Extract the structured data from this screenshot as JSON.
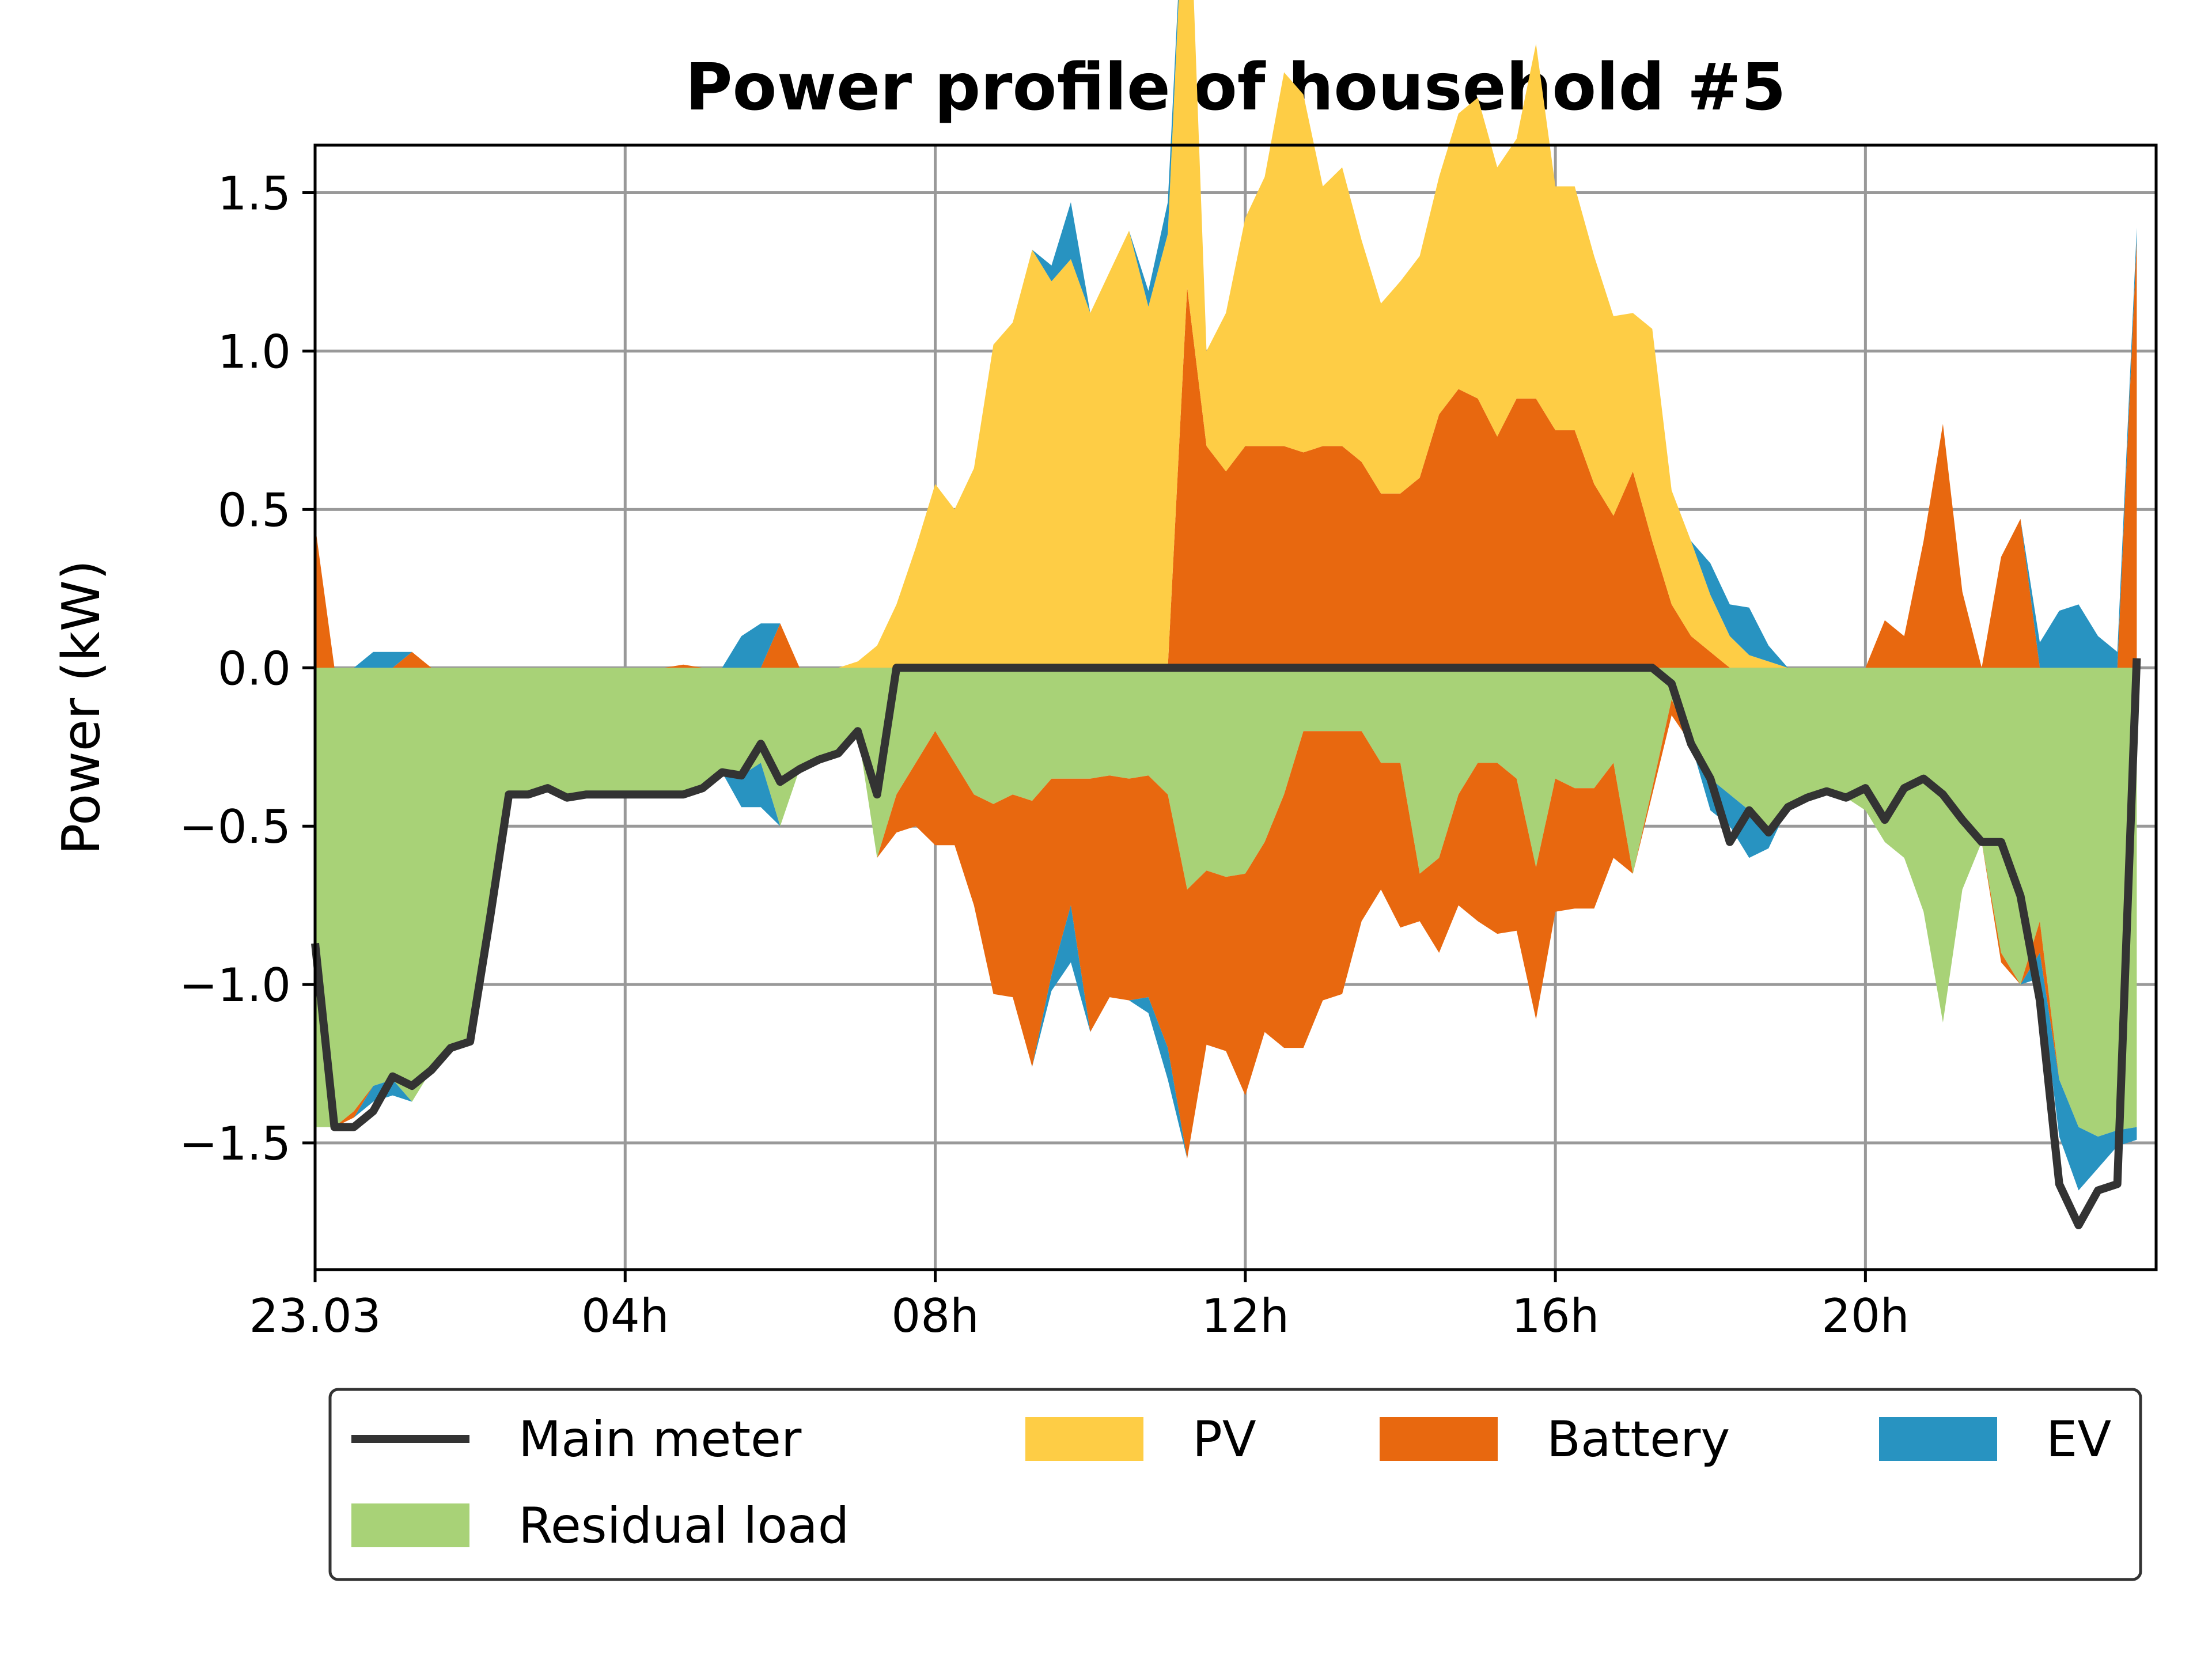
{
  "chart_data": {
    "type": "area",
    "title": "Power profile of household #5",
    "xlabel": "",
    "ylabel": "Power (kW)",
    "xlim": [
      0,
      23.75
    ],
    "ylim": [
      -1.9,
      1.65
    ],
    "x_ticks": [
      {
        "x": 0,
        "label": "23.03"
      },
      {
        "x": 4,
        "label": "04h"
      },
      {
        "x": 8,
        "label": "08h"
      },
      {
        "x": 12,
        "label": "12h"
      },
      {
        "x": 16,
        "label": "16h"
      },
      {
        "x": 20,
        "label": "20h"
      }
    ],
    "y_ticks": [
      {
        "y": 1.5,
        "label": "1.5"
      },
      {
        "y": 1.0,
        "label": "1.0"
      },
      {
        "y": 0.5,
        "label": "0.5"
      },
      {
        "y": 0.0,
        "label": "0.0"
      },
      {
        "y": -0.5,
        "label": "−0.5"
      },
      {
        "y": -1.0,
        "label": "−1.0"
      },
      {
        "y": -1.5,
        "label": "−1.5"
      }
    ],
    "grid": true,
    "legend_position": "below",
    "time_step_hours": 0.25,
    "series": [
      {
        "name": "Main meter",
        "kind": "line",
        "color": "#333333",
        "values": [
          -0.87,
          -1.45,
          -1.45,
          -1.4,
          -1.29,
          -1.32,
          -1.27,
          -1.2,
          -1.18,
          -0.8,
          -0.4,
          -0.4,
          -0.38,
          -0.41,
          -0.4,
          -0.4,
          -0.4,
          -0.4,
          -0.4,
          -0.4,
          -0.38,
          -0.33,
          -0.34,
          -0.24,
          -0.36,
          -0.32,
          -0.29,
          -0.27,
          -0.2,
          -0.4,
          0.0,
          0.0,
          0.0,
          0.0,
          0.0,
          0.0,
          0.0,
          0.0,
          0.0,
          0.0,
          0.0,
          0.0,
          0.0,
          0.0,
          0.0,
          0.0,
          0.0,
          0.0,
          0.0,
          0.0,
          0.0,
          0.0,
          0.0,
          0.0,
          0.0,
          0.0,
          0.0,
          0.0,
          0.0,
          0.0,
          0.0,
          0.0,
          0.0,
          0.0,
          0.0,
          0.0,
          0.0,
          0.0,
          0.0,
          0.0,
          -0.05,
          -0.24,
          -0.35,
          -0.55,
          -0.45,
          -0.52,
          -0.44,
          -0.41,
          -0.39,
          -0.41,
          -0.38,
          -0.48,
          -0.38,
          -0.35,
          -0.4,
          -0.48,
          -0.55,
          -0.55,
          -0.72,
          -1.05,
          -1.63,
          -1.76,
          -1.65,
          -1.63,
          0.03
        ]
      },
      {
        "name": "Residual load",
        "kind": "area",
        "color": "#a8d277",
        "values": [
          -1.45,
          -1.45,
          -1.4,
          -1.32,
          -1.3,
          -1.37,
          -1.27,
          -1.2,
          -1.18,
          -0.8,
          -0.4,
          -0.4,
          -0.38,
          -0.41,
          -0.4,
          -0.4,
          -0.4,
          -0.4,
          -0.4,
          -0.4,
          -0.38,
          -0.33,
          -0.34,
          -0.3,
          -0.5,
          -0.32,
          -0.29,
          -0.27,
          -0.2,
          -0.6,
          -0.4,
          -0.3,
          -0.2,
          -0.3,
          -0.4,
          -0.43,
          -0.4,
          -0.42,
          -0.35,
          -0.35,
          -0.35,
          -0.34,
          -0.35,
          -0.34,
          -0.4,
          -0.7,
          -0.64,
          -0.66,
          -0.65,
          -0.55,
          -0.4,
          -0.2,
          -0.2,
          -0.2,
          -0.2,
          -0.3,
          -0.3,
          -0.65,
          -0.6,
          -0.4,
          -0.3,
          -0.3,
          -0.35,
          -0.63,
          -0.35,
          -0.38,
          -0.38,
          -0.3,
          -0.65,
          -0.38,
          -0.1,
          -0.24,
          -0.35,
          -0.4,
          -0.45,
          -0.52,
          -0.44,
          -0.41,
          -0.39,
          -0.41,
          -0.45,
          -0.55,
          -0.6,
          -0.77,
          -1.12,
          -0.7,
          -0.55,
          -0.9,
          -1.0,
          -0.8,
          -1.3,
          -1.45,
          -1.48,
          -1.46,
          -1.45
        ]
      },
      {
        "name": "Battery",
        "kind": "area",
        "color": "#e8680f",
        "values": [
          0.45,
          0.0,
          0.0,
          0.0,
          0.0,
          0.05,
          0.0,
          0.0,
          0.0,
          0.0,
          0.0,
          0.0,
          0.0,
          0.0,
          0.0,
          0.0,
          0.0,
          0.0,
          0.0,
          0.01,
          0.0,
          0.0,
          0.0,
          0.0,
          0.14,
          0.0,
          0.0,
          0.0,
          0.0,
          0.0,
          0.0,
          0.0,
          0.0,
          0.0,
          0.0,
          0.0,
          0.0,
          0.0,
          0.0,
          0.0,
          0.0,
          0.0,
          0.0,
          0.0,
          0.0,
          1.2,
          0.7,
          0.62,
          0.7,
          0.7,
          0.7,
          0.68,
          0.7,
          0.7,
          0.65,
          0.55,
          0.55,
          0.6,
          0.8,
          0.88,
          0.85,
          0.73,
          0.85,
          0.85,
          0.75,
          0.75,
          0.58,
          0.48,
          0.62,
          0.4,
          0.2,
          0.1,
          0.05,
          0.0,
          0.0,
          0.0,
          0.0,
          0.0,
          0.0,
          0.0,
          0.0,
          0.15,
          0.1,
          0.4,
          0.77,
          0.24,
          0.0,
          0.35,
          0.47,
          0.0,
          0.0,
          0.0,
          0.0,
          0.0,
          1.35
        ]
      },
      {
        "name": "PV",
        "kind": "area",
        "color": "#fecd45",
        "values": [
          0.0,
          0.0,
          0.0,
          0.0,
          0.0,
          0.0,
          0.0,
          0.0,
          0.0,
          0.0,
          0.0,
          0.0,
          0.0,
          0.0,
          0.0,
          0.0,
          0.0,
          0.0,
          0.0,
          0.0,
          0.0,
          0.0,
          0.0,
          0.0,
          0.0,
          0.0,
          0.0,
          0.0,
          0.02,
          0.07,
          0.2,
          0.38,
          0.58,
          0.5,
          0.63,
          1.02,
          1.09,
          1.32,
          1.22,
          1.29,
          1.12,
          1.25,
          1.38,
          1.14,
          1.37,
          1.49,
          0.3,
          0.5,
          0.72,
          0.85,
          1.18,
          1.13,
          0.82,
          0.88,
          0.7,
          0.6,
          0.67,
          0.7,
          0.75,
          0.87,
          0.95,
          0.85,
          0.82,
          1.12,
          0.77,
          0.77,
          0.72,
          0.63,
          0.5,
          0.67,
          0.36,
          0.3,
          0.18,
          0.1,
          0.04,
          0.02,
          0.0,
          0.0,
          0.0,
          0.0,
          0.0,
          0.0,
          0.0,
          0.0,
          0.0,
          0.0,
          0.0,
          0.0,
          0.0,
          0.0,
          0.0,
          0.0,
          0.0,
          0.0,
          0.0
        ]
      },
      {
        "name": "EV",
        "kind": "area",
        "color": "#2893c1",
        "values": [
          0.0,
          0.0,
          0.0,
          0.05,
          0.05,
          0.0,
          0.0,
          0.0,
          0.0,
          0.0,
          0.0,
          0.0,
          0.0,
          0.0,
          0.0,
          0.0,
          0.0,
          0.0,
          0.0,
          0.0,
          0.0,
          0.0,
          0.1,
          0.14,
          0.0,
          0.0,
          0.0,
          0.0,
          0.0,
          0.0,
          0.0,
          0.0,
          0.0,
          0.0,
          0.0,
          0.0,
          0.0,
          0.0,
          0.05,
          0.18,
          0.0,
          0.0,
          0.0,
          0.05,
          0.1,
          0.0,
          0.0,
          0.0,
          0.0,
          0.0,
          0.0,
          0.0,
          0.0,
          0.0,
          0.0,
          0.0,
          0.0,
          0.0,
          0.0,
          0.0,
          0.0,
          0.0,
          0.0,
          0.0,
          0.0,
          0.0,
          0.0,
          0.0,
          0.0,
          0.0,
          0.0,
          0.0,
          0.1,
          0.1,
          0.15,
          0.05,
          0.0,
          0.0,
          0.0,
          0.0,
          0.0,
          0.0,
          0.0,
          0.0,
          0.0,
          0.0,
          0.0,
          0.0,
          0.0,
          0.08,
          0.18,
          0.2,
          0.1,
          0.05,
          0.04
        ]
      }
    ],
    "legend": {
      "items": [
        {
          "label": "Main meter",
          "series": "Main meter"
        },
        {
          "label": "PV",
          "series": "PV"
        },
        {
          "label": "Battery",
          "series": "Battery"
        },
        {
          "label": "EV",
          "series": "EV"
        },
        {
          "label": "Residual load",
          "series": "Residual load"
        }
      ]
    }
  }
}
